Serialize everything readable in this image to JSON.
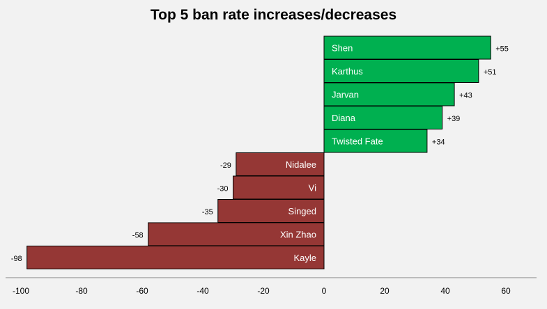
{
  "chart_data": {
    "type": "bar",
    "orientation": "horizontal",
    "title": "Top 5 ban rate increases/decreases",
    "xlabel": "",
    "ylabel": "",
    "categories": [
      "Shen",
      "Karthus",
      "Jarvan",
      "Diana",
      "Twisted Fate",
      "Nidalee",
      "Vi",
      "Singed",
      "Xin Zhao",
      "Kayle"
    ],
    "values": [
      55,
      51,
      43,
      39,
      34,
      -29,
      -30,
      -35,
      -58,
      -98
    ],
    "value_labels": [
      "+55",
      "+51",
      "+43",
      "+39",
      "+34",
      "-29",
      "-30",
      "-35",
      "-58",
      "-98"
    ],
    "xlim": [
      -100,
      70
    ],
    "xticks": [
      -100,
      -80,
      -60,
      -40,
      -20,
      0,
      20,
      40,
      60
    ],
    "grid": false,
    "legend": "none",
    "colors": {
      "positive": "#00b050",
      "negative": "#953735",
      "background": "#f2f2f2"
    }
  }
}
